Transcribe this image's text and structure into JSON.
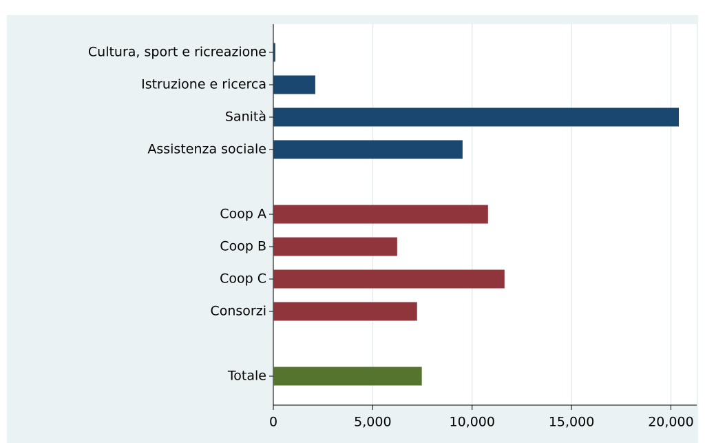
{
  "chart_data": {
    "type": "barh",
    "categories": [
      "Cultura, sport e ricreazione",
      "Istruzione e ricerca",
      "Sanità",
      "Assistenza sociale",
      null,
      "Coop A",
      "Coop B",
      "Coop C",
      "Consorzi",
      null,
      "Totale"
    ],
    "values": [
      100,
      2110,
      20400,
      9520,
      null,
      10800,
      6230,
      11630,
      7230,
      null,
      7470
    ],
    "colors": [
      "#1a476f",
      "#1a476f",
      "#1a476f",
      "#1a476f",
      null,
      "#90353b",
      "#90353b",
      "#90353b",
      "#90353b",
      null,
      "#55752f"
    ],
    "xlim": [
      0,
      21300
    ],
    "xticks": [
      0,
      {
        "value": 5000,
        "label": "5,000"
      },
      {
        "value": 10000,
        "label": "10,000"
      },
      {
        "value": 15000,
        "label": "15,000"
      },
      {
        "value": 20000,
        "label": "20,000"
      }
    ],
    "grid": true
  }
}
